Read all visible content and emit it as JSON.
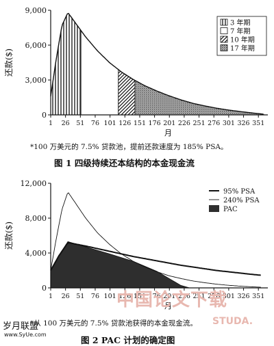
{
  "chart_data": [
    {
      "type": "area",
      "ylabel": "还款($)",
      "xlabel": "月",
      "ylim": [
        0,
        9000
      ],
      "xlim": [
        1,
        360
      ],
      "y_ticks": [
        "0",
        "3,000",
        "6,000",
        "9,000"
      ],
      "y_tick_values": [
        0,
        3000,
        6000,
        9000
      ],
      "x_ticks": [
        "1",
        "26",
        "51",
        "76",
        "101",
        "126",
        "151",
        "176",
        "201",
        "226",
        "251",
        "276",
        "301",
        "326",
        "351"
      ],
      "x_tick_values": [
        1,
        26,
        51,
        76,
        101,
        126,
        151,
        176,
        201,
        226,
        251,
        276,
        301,
        326,
        351
      ],
      "grid": false,
      "legend_placement": "top-right",
      "curve": {
        "x": [
          1,
          10,
          20,
          30,
          40,
          50,
          60,
          80,
          100,
          120,
          140,
          160,
          180,
          200,
          220,
          240,
          260,
          280,
          300,
          320,
          340,
          360
        ],
        "y": [
          1600,
          4700,
          7700,
          8800,
          8100,
          7400,
          6700,
          5500,
          4500,
          3700,
          3050,
          2500,
          2050,
          1650,
          1300,
          1000,
          780,
          580,
          420,
          290,
          170,
          60
        ]
      },
      "series": [
        {
          "name": "3 年期",
          "pattern": "vertical-lines",
          "x_start": 1,
          "x_end": 52
        },
        {
          "name": "7 年期",
          "pattern": "blank",
          "x_start": 52,
          "x_end": 115
        },
        {
          "name": "10 年期",
          "pattern": "diagonal-lines",
          "x_start": 115,
          "x_end": 143
        },
        {
          "name": "17 年期",
          "pattern": "dots",
          "x_start": 143,
          "x_end": 360
        }
      ],
      "note": "*100 万美元的 7.5% 贷款池，提前还款速度为 185% PSA。",
      "figure_caption": "图 1   四级持续还本结构的本金现金流"
    },
    {
      "type": "line",
      "ylabel": "还款($)",
      "xlabel": "月",
      "ylim": [
        0,
        12000
      ],
      "xlim": [
        1,
        360
      ],
      "y_ticks": [
        "0",
        "4,000",
        "8,000",
        "12,000"
      ],
      "y_tick_values": [
        0,
        4000,
        8000,
        12000
      ],
      "x_ticks": [
        "1",
        "26",
        "51",
        "76",
        "101",
        "126",
        "151",
        "176",
        "201",
        "226",
        "251",
        "276",
        "301",
        "326",
        "351"
      ],
      "x_tick_values": [
        1,
        26,
        51,
        76,
        101,
        126,
        151,
        176,
        201,
        226,
        251,
        276,
        301,
        326,
        351
      ],
      "grid": false,
      "legend_placement": "top-right",
      "series": [
        {
          "name": "95% PSA",
          "style": "thick-line",
          "x": [
            1,
            15,
            30,
            45,
            60,
            80,
            100,
            120,
            140,
            160,
            180,
            200,
            220,
            240,
            260,
            280,
            300,
            320,
            340,
            355
          ],
          "y": [
            2000,
            3700,
            5200,
            5000,
            4800,
            4500,
            4200,
            3900,
            3600,
            3350,
            3100,
            2850,
            2600,
            2400,
            2200,
            2000,
            1850,
            1700,
            1550,
            1450
          ]
        },
        {
          "name": "240% PSA",
          "style": "thin-line",
          "x": [
            1,
            10,
            20,
            30,
            40,
            50,
            60,
            80,
            100,
            120,
            140,
            160,
            180,
            200,
            220,
            240,
            260,
            280,
            300,
            320,
            340,
            355
          ],
          "y": [
            2000,
            5500,
            9000,
            11000,
            10000,
            9000,
            8000,
            6300,
            5000,
            3900,
            3050,
            2400,
            1850,
            1400,
            1080,
            800,
            600,
            430,
            300,
            200,
            120,
            80
          ]
        },
        {
          "name": "PAC",
          "style": "dark-fill",
          "x": [
            1,
            15,
            30,
            60,
            100,
            140,
            180,
            220,
            235
          ],
          "y": [
            2000,
            3700,
            5300,
            4700,
            3900,
            3050,
            1900,
            300,
            0
          ]
        }
      ],
      "note": "*从 100 万美元的 7.5% 贷款池获得的本金现金流。",
      "figure_caption": "图 2   PAC 计划的确定图"
    }
  ],
  "watermark": {
    "center_text": "中国论文下载",
    "center_url": "STUDA.",
    "left_text": "岁月联盟",
    "left_url": "www.SyUe.com"
  },
  "colors": {
    "ink": "#111111",
    "pac_fill": "#2e2e2e",
    "dot_fill": "#555555",
    "watermark_red": "#e8b8b0"
  }
}
